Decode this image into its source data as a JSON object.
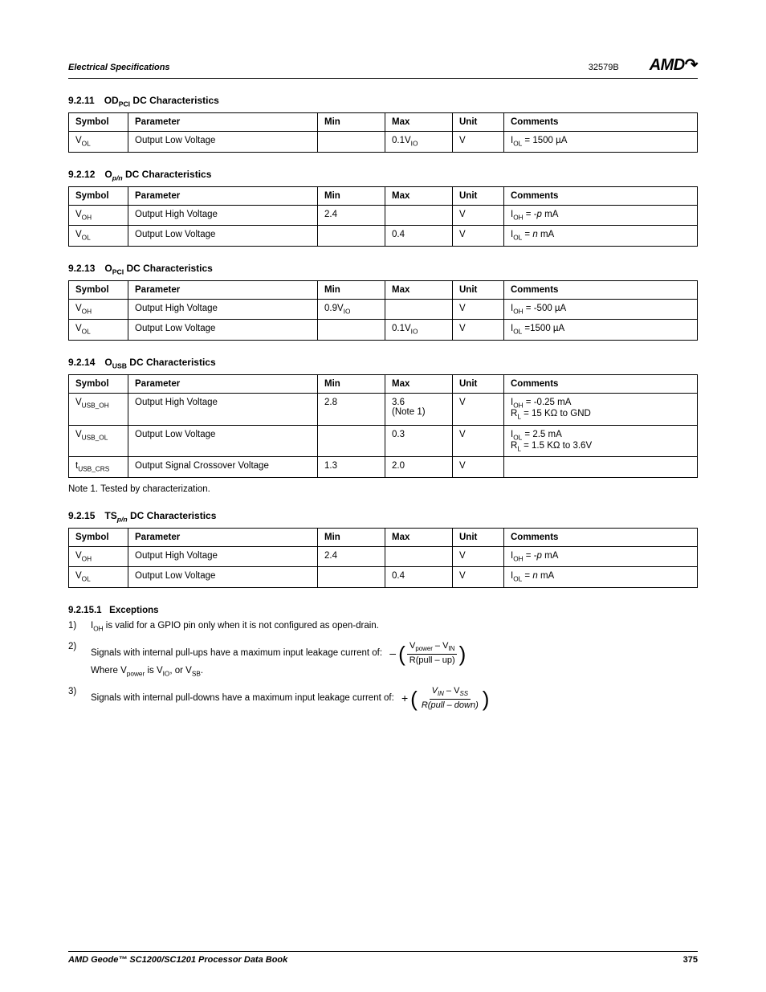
{
  "header": {
    "left": "Electrical Specifications",
    "code": "32579B",
    "logo": "AMD"
  },
  "footer": {
    "book": "AMD Geode™ SC1200/SC1201 Processor Data Book",
    "page": "375"
  },
  "columns": {
    "symbol": "Symbol",
    "parameter": "Parameter",
    "min": "Min",
    "max": "Max",
    "unit": "Unit",
    "comments": "Comments"
  },
  "s1": {
    "num": "9.2.11",
    "title_pre": "OD",
    "title_sub": "PCI",
    "title_post": " DC Characteristics",
    "rows": [
      {
        "sym": "V",
        "sym_sub": "OL",
        "param": "Output Low Voltage",
        "min": "",
        "max": "0.1V",
        "max_sub": "IO",
        "unit": "V",
        "comm": "I",
        "comm_sub": "OL",
        "comm_rest": " = 1500 µA"
      }
    ]
  },
  "s2": {
    "num": "9.2.12",
    "title_pre": "O",
    "title_sub": "p/n",
    "title_post": " DC Characteristics",
    "rows": [
      {
        "sym": "V",
        "sym_sub": "OH",
        "param": "Output High Voltage",
        "min": "2.4",
        "max": "",
        "unit": "V",
        "comm": "I",
        "comm_sub": "OH",
        "comm_rest": " = -",
        "comm_ital": "p",
        "comm_tail": " mA"
      },
      {
        "sym": "V",
        "sym_sub": "OL",
        "param": "Output Low Voltage",
        "min": "",
        "max": "0.4",
        "unit": "V",
        "comm": "I",
        "comm_sub": "OL",
        "comm_rest": " = ",
        "comm_ital": "n",
        "comm_tail": " mA"
      }
    ]
  },
  "s3": {
    "num": "9.2.13",
    "title_pre": "O",
    "title_sub": "PCI",
    "title_post": " DC Characteristics",
    "rows": [
      {
        "sym": "V",
        "sym_sub": "OH",
        "param": "Output High Voltage",
        "min": "0.9V",
        "min_sub": "IO",
        "max": "",
        "unit": "V",
        "comm": "I",
        "comm_sub": "OH",
        "comm_rest": " = -500 µA"
      },
      {
        "sym": "V",
        "sym_sub": "OL",
        "param": "Output Low Voltage",
        "min": "",
        "max": "0.1V",
        "max_sub": "IO",
        "unit": "V",
        "comm": "I",
        "comm_sub": "OL",
        "comm_rest": " =1500 µA"
      }
    ]
  },
  "s4": {
    "num": "9.2.14",
    "title_pre": "O",
    "title_sub": "USB",
    "title_post": " DC Characteristics",
    "rows": [
      {
        "sym": "V",
        "sym_sub": "USB_OH",
        "param": "Output High Voltage",
        "min": "2.8",
        "max": "3.6",
        "max_note": "(Note  1)",
        "unit": "V",
        "comm_l1": "I",
        "comm_l1_sub": "OH",
        "comm_l1_rest": " = -0.25 mA",
        "comm_l2": "R",
        "comm_l2_sub": "L",
        "comm_l2_rest": " = 15 KΩ to GND"
      },
      {
        "sym": "V",
        "sym_sub": "USB_OL",
        "param": "Output Low Voltage",
        "min": "",
        "max": "0.3",
        "unit": "V",
        "comm_l1": "I",
        "comm_l1_sub": "OL",
        "comm_l1_rest": " = 2.5 mA",
        "comm_l2": "R",
        "comm_l2_sub": "L",
        "comm_l2_rest": " = 1.5 KΩ to 3.6V"
      },
      {
        "sym": "t",
        "sym_sub": "USB_CRS",
        "param": "Output Signal Crossover Voltage",
        "min": "1.3",
        "max": "2.0",
        "unit": "V",
        "comm": ""
      }
    ],
    "note": "Note 1.   Tested by characterization."
  },
  "s5": {
    "num": "9.2.15",
    "title_pre": "TS",
    "title_sub": "p/n",
    "title_post": " DC Characteristics",
    "rows": [
      {
        "sym": "V",
        "sym_sub": "OH",
        "param": "Output High Voltage",
        "min": "2.4",
        "max": "",
        "unit": "V",
        "comm": "I",
        "comm_sub": "OH",
        "comm_rest": " = -",
        "comm_ital": "p",
        "comm_tail": " mA"
      },
      {
        "sym": "V",
        "sym_sub": "OL",
        "param": "Output Low Voltage",
        "min": "",
        "max": "0.4",
        "unit": "V",
        "comm": "I",
        "comm_sub": "OL",
        "comm_rest": " = ",
        "comm_ital": "n",
        "comm_tail": " mA"
      }
    ]
  },
  "exc": {
    "heading_num": "9.2.15.1",
    "heading": "Exceptions",
    "items": [
      {
        "n": "1)",
        "pre": "I",
        "sub": "OH",
        "rest": " is valid for a GPIO pin only when it is not configured as open-drain."
      },
      {
        "n": "2)",
        "text": "Signals with internal pull-ups have a maximum input leakage current of:",
        "eq_sign": "–",
        "eq_num_a": "V",
        "eq_num_a_sub": "power",
        "eq_num_mid": " – V",
        "eq_num_b_sub": "IN",
        "eq_den": "R(pull – up)",
        "line2_pre": "Where V",
        "line2_sub1": "power",
        "line2_mid": " is V",
        "line2_sub2": "IO",
        "line2_mid2": ", or V",
        "line2_sub3": "SB",
        "line2_end": "."
      },
      {
        "n": "3)",
        "text": "Signals with internal pull-downs have a maximum input leakage current of:",
        "eq_sign": "+",
        "eq_num_a": "V",
        "eq_num_a_sub": "IN",
        "eq_num_mid": " – V",
        "eq_num_b_sub": "SS",
        "eq_den": "R(pull – down)"
      }
    ]
  }
}
